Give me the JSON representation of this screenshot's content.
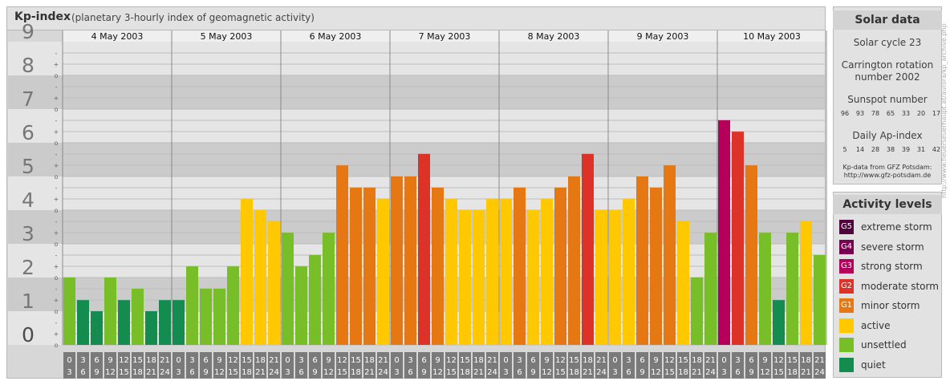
{
  "header": {
    "title": "Kp-index",
    "subtitle": "(planetary 3-hourly index of geomagnetic activity)"
  },
  "chart_data": {
    "type": "bar",
    "dates": [
      "4 May 2003",
      "5 May 2003",
      "6 May 2003",
      "7 May 2003",
      "8 May 2003",
      "9 May 2003",
      "10 May 2003"
    ],
    "intervals": [
      {
        "top": "0",
        "bottom": "3"
      },
      {
        "top": "3",
        "bottom": "6"
      },
      {
        "top": "6",
        "bottom": "9"
      },
      {
        "top": "9",
        "bottom": "12"
      },
      {
        "top": "12",
        "bottom": "15"
      },
      {
        "top": "15",
        "bottom": "18"
      },
      {
        "top": "18",
        "bottom": "21"
      },
      {
        "top": "21",
        "bottom": "24"
      }
    ],
    "kp_values": [
      2.0,
      1.33,
      1.0,
      2.0,
      1.33,
      1.67,
      1.0,
      1.33,
      1.33,
      2.33,
      1.67,
      1.67,
      2.33,
      4.33,
      4.0,
      3.67,
      3.33,
      2.33,
      2.67,
      3.33,
      5.33,
      4.67,
      4.67,
      4.33,
      5.0,
      5.0,
      5.67,
      4.67,
      4.33,
      4.0,
      4.0,
      4.33,
      4.33,
      4.67,
      4.0,
      4.33,
      4.67,
      5.0,
      5.67,
      4.0,
      4.0,
      4.33,
      5.0,
      4.67,
      5.33,
      3.67,
      2.0,
      3.33,
      6.67,
      6.33,
      5.33,
      3.33,
      1.33,
      3.33,
      3.67,
      2.67
    ],
    "y_ticks": [
      "0",
      "1",
      "2",
      "3",
      "4",
      "5",
      "6",
      "7",
      "8",
      "9"
    ],
    "minor_ticks": [
      "o",
      "+",
      "-"
    ],
    "ylim": [
      0,
      9
    ],
    "levels": [
      {
        "min": 0,
        "max": 1.67,
        "color": "#148c50"
      },
      {
        "min": 1.67,
        "max": 3.67,
        "color": "#78be28"
      },
      {
        "min": 3.67,
        "max": 4.67,
        "color": "#ffc800"
      },
      {
        "min": 4.67,
        "max": 5.67,
        "color": "#e67814"
      },
      {
        "min": 5.67,
        "max": 6.67,
        "color": "#dc3228"
      },
      {
        "min": 6.67,
        "max": 7.67,
        "color": "#b4005a"
      },
      {
        "min": 7.67,
        "max": 8.67,
        "color": "#780050"
      },
      {
        "min": 8.67,
        "max": 9.1,
        "color": "#50003c"
      }
    ],
    "colors": {
      "tick_label_bg": "#7a7a7a"
    }
  },
  "solar": {
    "title": "Solar data",
    "cycle": "Solar cycle 23",
    "carrington_1": "Carrington rotation",
    "carrington_2": "number 2002",
    "sunspot_title": "Sunspot number",
    "sunspot_values": [
      "96",
      "93",
      "78",
      "65",
      "33",
      "20",
      "17"
    ],
    "ap_title": "Daily Ap-index",
    "ap_values": [
      "5",
      "14",
      "28",
      "38",
      "39",
      "31",
      "42"
    ],
    "source_1": "Kp-data from GFZ Potsdam:",
    "source_2": "http://www.gfz-potsdam.de"
  },
  "activity": {
    "title": "Activity levels",
    "items": [
      {
        "code": "G5",
        "label": "extreme storm",
        "color": "#50003c"
      },
      {
        "code": "G4",
        "label": "severe storm",
        "color": "#780050"
      },
      {
        "code": "G3",
        "label": "strong storm",
        "color": "#b4005a"
      },
      {
        "code": "G2",
        "label": "moderate storm",
        "color": "#dc3228"
      },
      {
        "code": "G1",
        "label": "minor storm",
        "color": "#e67814"
      },
      {
        "code": "",
        "label": "active",
        "color": "#ffc800"
      },
      {
        "code": "",
        "label": "unsettled",
        "color": "#78be28"
      },
      {
        "code": "",
        "label": "quiet",
        "color": "#148c50"
      }
    ]
  },
  "watermark": "http://www.fleuerseuerhaupt.at/aurora/kp_archive.php"
}
